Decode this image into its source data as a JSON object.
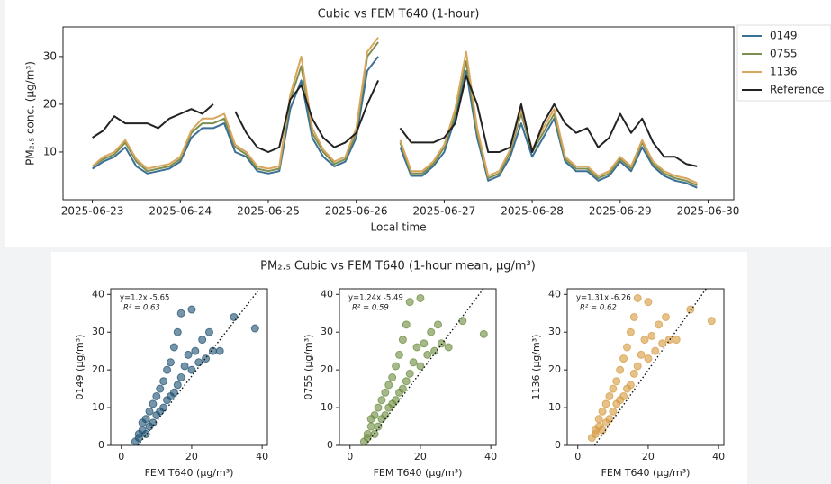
{
  "suptitle": "PM₂.₅ Cubic vs FEM T640 (1-hour mean, µg/m³)",
  "chart_data": [
    {
      "type": "line",
      "title": "Cubic vs FEM T640 (1-hour)",
      "xlabel": "Local time",
      "ylabel": "PM₂.₅ conc. (µg/m³)",
      "legend": "right-outside",
      "xlim": [
        "2025-06-22T16:00",
        "2025-06-30T07:00"
      ],
      "xticks": [
        "2025-06-23",
        "2025-06-24",
        "2025-06-25",
        "2025-06-26",
        "2025-06-27",
        "2025-06-28",
        "2025-06-29",
        "2025-06-30"
      ],
      "ylim": [
        0,
        36.2
      ],
      "yticks": [
        10,
        20,
        30
      ],
      "x": [
        "2025-06-23T00:00",
        "2025-06-23T03:00",
        "2025-06-23T06:00",
        "2025-06-23T09:00",
        "2025-06-23T12:00",
        "2025-06-23T15:00",
        "2025-06-23T18:00",
        "2025-06-23T21:00",
        "2025-06-24T00:00",
        "2025-06-24T03:00",
        "2025-06-24T06:00",
        "2025-06-24T09:00",
        "2025-06-24T12:00",
        "2025-06-24T15:00",
        "2025-06-24T18:00",
        "2025-06-24T21:00",
        "2025-06-25T00:00",
        "2025-06-25T03:00",
        "2025-06-25T06:00",
        "2025-06-25T09:00",
        "2025-06-25T12:00",
        "2025-06-25T15:00",
        "2025-06-25T18:00",
        "2025-06-25T21:00",
        "2025-06-26T00:00",
        "2025-06-26T03:00",
        "2025-06-26T06:00",
        "2025-06-26T09:00",
        "2025-06-26T12:00",
        "2025-06-26T15:00",
        "2025-06-26T18:00",
        "2025-06-26T21:00",
        "2025-06-27T00:00",
        "2025-06-27T03:00",
        "2025-06-27T06:00",
        "2025-06-27T09:00",
        "2025-06-27T12:00",
        "2025-06-27T15:00",
        "2025-06-27T18:00",
        "2025-06-27T21:00",
        "2025-06-28T00:00",
        "2025-06-28T03:00",
        "2025-06-28T06:00",
        "2025-06-28T09:00",
        "2025-06-28T12:00",
        "2025-06-28T15:00",
        "2025-06-28T18:00",
        "2025-06-28T21:00",
        "2025-06-29T00:00",
        "2025-06-29T03:00",
        "2025-06-29T06:00",
        "2025-06-29T09:00",
        "2025-06-29T12:00",
        "2025-06-29T15:00",
        "2025-06-29T18:00",
        "2025-06-29T21:00"
      ],
      "series": [
        {
          "name": "0149",
          "color": "#3a6f96",
          "values": [
            6.5,
            8,
            9,
            11,
            7,
            5.5,
            6,
            6.5,
            8,
            13,
            15,
            15,
            16,
            10,
            9,
            6,
            5.5,
            6,
            19,
            25,
            13,
            9,
            7,
            8,
            13,
            27,
            30,
            null,
            11,
            5,
            5,
            7,
            10,
            17,
            27,
            13,
            4,
            5,
            9,
            16,
            9,
            13,
            17,
            8,
            6,
            6,
            4,
            5,
            8,
            6,
            11,
            7,
            5,
            4,
            3.5,
            2.5
          ]
        },
        {
          "name": "0755",
          "color": "#7d8f50",
          "values": [
            7,
            8.5,
            9.5,
            12,
            8,
            6,
            6.5,
            7,
            8.5,
            14,
            16,
            16,
            17,
            11,
            9.5,
            6.5,
            6,
            6.5,
            21,
            28,
            14,
            10,
            7.5,
            8.5,
            14,
            30,
            33,
            null,
            12,
            5.5,
            5.5,
            7.5,
            11,
            18,
            29,
            14,
            4.5,
            5.5,
            10,
            18,
            10,
            14,
            18,
            8.5,
            6.5,
            6.5,
            4.5,
            5.5,
            8.5,
            6.5,
            12,
            7.5,
            5.5,
            4.5,
            4,
            3
          ]
        },
        {
          "name": "1136",
          "color": "#d9a65c",
          "values": [
            7,
            9,
            10,
            12.5,
            8.5,
            6.5,
            7,
            7.5,
            9,
            14.5,
            17,
            17,
            18,
            11.5,
            10,
            7,
            6.5,
            7,
            22,
            30,
            15,
            10.5,
            8,
            9,
            15,
            31,
            34,
            null,
            12.5,
            6,
            6,
            8,
            11.5,
            19,
            31,
            15,
            5,
            6,
            10.5,
            19,
            10.5,
            15,
            19,
            9,
            7,
            7,
            5,
            6,
            9,
            7,
            12.5,
            8,
            6,
            5,
            4.5,
            3.5
          ]
        },
        {
          "name": "Reference",
          "color": "#222222",
          "values": [
            13,
            14.5,
            17.5,
            16,
            16,
            16,
            15,
            17,
            18,
            19,
            18,
            20,
            null,
            18.5,
            14,
            11,
            10,
            11,
            21,
            24,
            17,
            13,
            11,
            12,
            14,
            20,
            25,
            null,
            15,
            12,
            12,
            12,
            13,
            16,
            26,
            20,
            10,
            10,
            11,
            20,
            10,
            16,
            20,
            16,
            14,
            15,
            11,
            13,
            18,
            14,
            17,
            12,
            9,
            9,
            7.5,
            7
          ]
        }
      ]
    },
    {
      "type": "scatter",
      "xlabel": "FEM T640 (µg/m³)",
      "ylabel": "0149 (µg/m³)",
      "color": "#1b4e6e",
      "xlim": [
        -3,
        41.5
      ],
      "xticks": [
        0,
        20,
        40
      ],
      "ylim": [
        0,
        41.5
      ],
      "yticks": [
        0,
        10,
        20,
        30,
        40
      ],
      "fit_label": "y=1.2x -5.65",
      "r2_label": "R² = 0.63",
      "fit": {
        "slope": 1.2,
        "intercept": -5.65
      },
      "x": [
        4,
        5,
        5,
        6,
        6,
        7,
        7,
        8,
        8,
        9,
        9,
        10,
        10,
        11,
        11,
        12,
        12,
        13,
        13,
        14,
        14,
        15,
        15,
        16,
        16,
        17,
        17,
        18,
        19,
        20,
        20,
        21,
        22,
        23,
        24,
        25,
        26,
        28,
        32,
        38
      ],
      "y": [
        1,
        3,
        2,
        4,
        6,
        3,
        7,
        5,
        9,
        6,
        11,
        8,
        13,
        9,
        15,
        10,
        17,
        12,
        20,
        13,
        22,
        14,
        26,
        16,
        30,
        18,
        35,
        21,
        24,
        20,
        36,
        25,
        22,
        28,
        23,
        30,
        25,
        25,
        34,
        31
      ]
    },
    {
      "type": "scatter",
      "xlabel": "FEM T640 (µg/m³)",
      "ylabel": "0755 (µg/m³)",
      "color": "#6a8a3c",
      "xlim": [
        -3,
        41.5
      ],
      "xticks": [
        0,
        20,
        40
      ],
      "ylim": [
        0,
        41.5
      ],
      "yticks": [
        0,
        10,
        20,
        30,
        40
      ],
      "fit_label": "y=1.24x -5.49",
      "r2_label": "R² = 0.59",
      "fit": {
        "slope": 1.24,
        "intercept": -5.49
      },
      "x": [
        4,
        5,
        5,
        6,
        6,
        7,
        7,
        8,
        8,
        9,
        9,
        10,
        10,
        11,
        11,
        12,
        12,
        13,
        13,
        14,
        14,
        15,
        15,
        16,
        16,
        17,
        17,
        18,
        19,
        20,
        20,
        21,
        22,
        23,
        24,
        25,
        26,
        28,
        32,
        38
      ],
      "y": [
        1,
        2,
        3,
        5,
        7,
        3,
        8,
        5,
        10,
        7,
        12,
        8,
        14,
        10,
        16,
        11,
        18,
        12,
        21,
        14,
        24,
        15,
        28,
        17,
        32,
        19,
        38,
        22,
        26,
        21,
        39,
        27,
        24,
        30,
        25,
        32,
        27,
        26,
        33,
        29.5
      ]
    },
    {
      "type": "scatter",
      "xlabel": "FEM T640 (µg/m³)",
      "ylabel": "1136 (µg/m³)",
      "color": "#d6993d",
      "xlim": [
        -3,
        41.5
      ],
      "xticks": [
        0,
        20,
        40
      ],
      "ylim": [
        0,
        41.5
      ],
      "yticks": [
        0,
        10,
        20,
        30,
        40
      ],
      "fit_label": "y=1.31x -6.26",
      "r2_label": "R² = 0.62",
      "fit": {
        "slope": 1.31,
        "intercept": -6.26
      },
      "x": [
        4,
        5,
        5,
        6,
        6,
        7,
        7,
        8,
        8,
        9,
        9,
        10,
        10,
        11,
        11,
        12,
        12,
        13,
        13,
        14,
        14,
        15,
        15,
        16,
        16,
        17,
        17,
        18,
        19,
        20,
        20,
        21,
        22,
        23,
        24,
        25,
        26,
        28,
        32,
        38
      ],
      "y": [
        2,
        3,
        4,
        5,
        7,
        4,
        9,
        6,
        11,
        7,
        13,
        9,
        15,
        11,
        17,
        12,
        20,
        13,
        23,
        15,
        26,
        16,
        30,
        19,
        34,
        21,
        39,
        24,
        28,
        23,
        38,
        29,
        25,
        32,
        27,
        34,
        28,
        28,
        36,
        33
      ]
    }
  ]
}
